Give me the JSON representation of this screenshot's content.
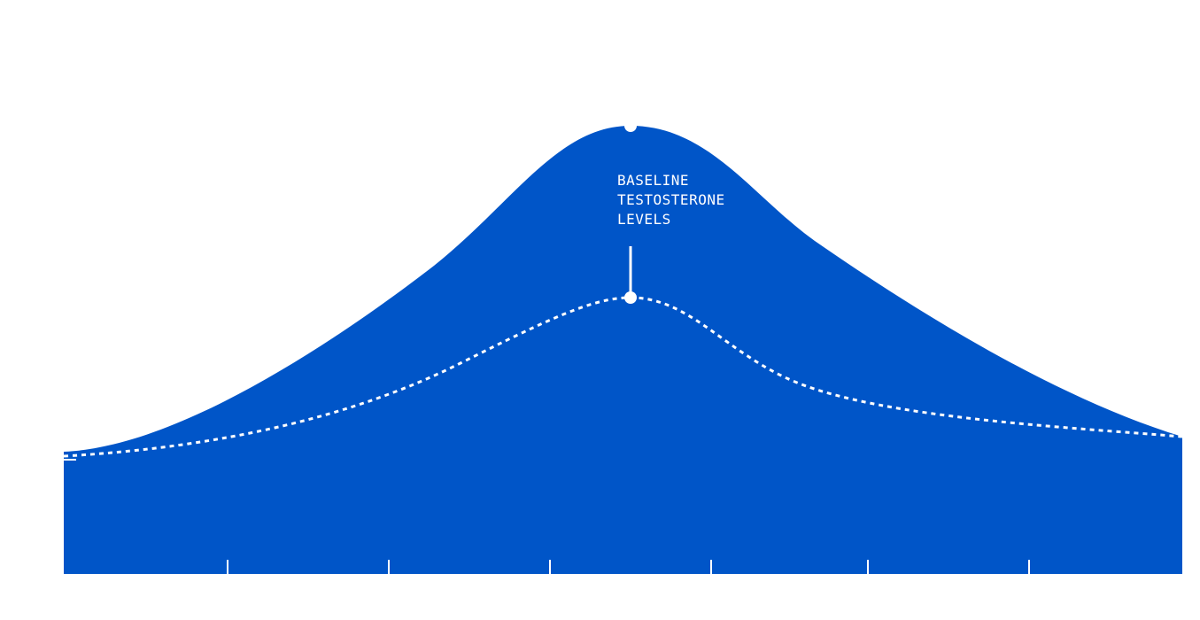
{
  "annotation": {
    "lines": [
      "BASELINE",
      "TESTOSTERONE",
      "LEVELS"
    ]
  }
}
